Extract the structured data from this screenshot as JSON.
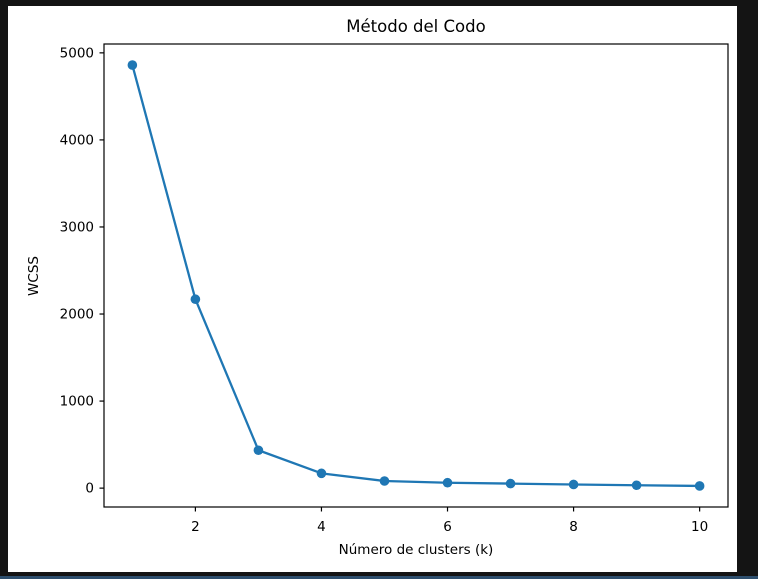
{
  "window": {
    "background_color": "#141414",
    "bottom_edge_color": "#2e4f6e"
  },
  "figure": {
    "background_color": "#ffffff"
  },
  "chart_data": {
    "type": "line",
    "title": "Método del Codo",
    "xlabel": "Número de clusters (k)",
    "ylabel": "WCSS",
    "x": [
      1,
      2,
      3,
      4,
      5,
      6,
      7,
      8,
      9,
      10
    ],
    "values": [
      4860,
      2170,
      435,
      170,
      82,
      62,
      52,
      42,
      33,
      25
    ],
    "series_name": "WCSS",
    "line_color": "#1f77b4",
    "marker": "circle",
    "marker_color": "#1f77b4",
    "xticks": [
      2,
      4,
      6,
      8,
      10
    ],
    "yticks": [
      0,
      1000,
      2000,
      3000,
      4000,
      5000
    ],
    "xlim": [
      0.55,
      10.45
    ],
    "ylim": [
      -216.75,
      5101.75
    ],
    "grid": false,
    "legend": "none",
    "spine_color": "#000000"
  }
}
